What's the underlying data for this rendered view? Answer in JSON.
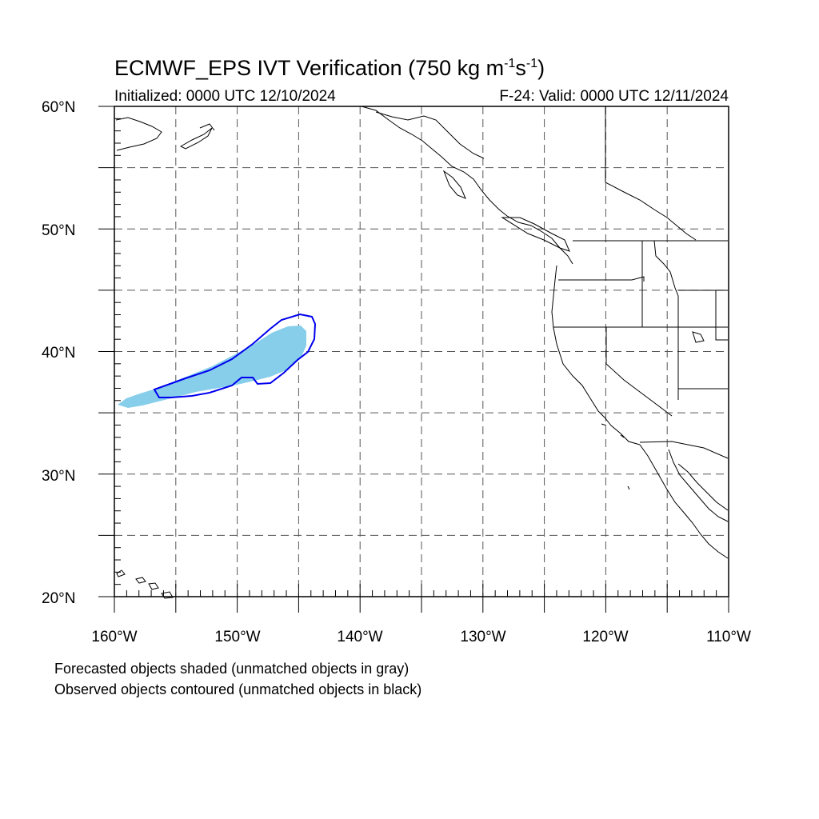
{
  "header": {
    "title_main": "ECMWF_EPS IVT Verification (750 kg m",
    "title_exp1": "-1",
    "title_mid": "s",
    "title_exp2": "-1",
    "title_end": ")",
    "initialized": "Initialized: 0000 UTC 12/10/2024",
    "valid": "F-24: Valid: 0000 UTC 12/11/2024"
  },
  "axes": {
    "lat_labels": [
      "60°N",
      "50°N",
      "40°N",
      "30°N",
      "20°N"
    ],
    "lon_labels": [
      "160°W",
      "150°W",
      "140°W",
      "130°W",
      "120°W",
      "110°W"
    ],
    "lon_range": [
      -160,
      -110
    ],
    "lat_range": [
      20,
      60
    ],
    "grid_spacing_deg": 5
  },
  "legend": {
    "forecast": "Forecasted objects shaded (unmatched objects in gray)",
    "observed": "Observed objects contoured (unmatched objects in black)"
  },
  "colors": {
    "forecast_fill": "#87ceeb",
    "observed_contour": "#0000ee",
    "coastline": "#000000",
    "grid": "#555555"
  }
}
